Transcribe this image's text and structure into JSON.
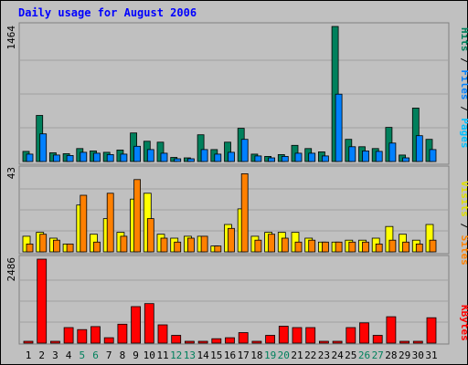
{
  "title": "Daily usage for August 2006",
  "colors": {
    "background": "#c0c0c0",
    "title": "#0000ff",
    "hits": "#00805c",
    "files": "#0080ff",
    "pages": "#00c0ff",
    "visits": "#ffff00",
    "sites": "#ff8000",
    "kbytes": "#ff0000",
    "weekend_label": "#00805c",
    "weekday_label": "#000000"
  },
  "chart_data": [
    {
      "type": "bar",
      "title": "Daily usage for August 2006",
      "ymax_label": "1464",
      "ylim": [
        0,
        1464
      ],
      "legend": [
        "Pages",
        "Files",
        "Hits"
      ],
      "categories": [
        "1",
        "2",
        "3",
        "4",
        "5",
        "6",
        "7",
        "8",
        "9",
        "10",
        "11",
        "12",
        "13",
        "14",
        "15",
        "16",
        "17",
        "18",
        "19",
        "20",
        "21",
        "22",
        "23",
        "24",
        "25",
        "26",
        "27",
        "28",
        "29",
        "30",
        "31"
      ],
      "series": [
        {
          "name": "Hits",
          "values": [
            110,
            500,
            95,
            85,
            140,
            115,
            100,
            125,
            310,
            220,
            210,
            45,
            40,
            290,
            130,
            210,
            360,
            80,
            55,
            75,
            175,
            140,
            105,
            1464,
            240,
            160,
            140,
            370,
            70,
            580,
            240
          ]
        },
        {
          "name": "Files",
          "values": [
            80,
            300,
            70,
            65,
            100,
            90,
            75,
            80,
            165,
            130,
            90,
            30,
            30,
            130,
            80,
            100,
            240,
            60,
            40,
            55,
            90,
            90,
            60,
            730,
            160,
            115,
            110,
            200,
            40,
            280,
            130
          ]
        },
        {
          "name": "Pages",
          "values": [
            0,
            0,
            0,
            0,
            0,
            0,
            0,
            0,
            0,
            0,
            0,
            0,
            0,
            0,
            0,
            0,
            0,
            0,
            0,
            0,
            0,
            0,
            0,
            0,
            0,
            0,
            0,
            0,
            0,
            0,
            0
          ]
        }
      ]
    },
    {
      "type": "bar",
      "ymax_label": "43",
      "ylim": [
        0,
        43
      ],
      "legend": [
        "Sites",
        "Visits"
      ],
      "categories": [
        "1",
        "2",
        "3",
        "4",
        "5",
        "6",
        "7",
        "8",
        "9",
        "10",
        "11",
        "12",
        "13",
        "14",
        "15",
        "16",
        "17",
        "18",
        "19",
        "20",
        "21",
        "22",
        "23",
        "24",
        "25",
        "26",
        "27",
        "28",
        "29",
        "30",
        "31"
      ],
      "series": [
        {
          "name": "Visits",
          "values": [
            8,
            10,
            7,
            4,
            24,
            9,
            17,
            10,
            27,
            30,
            9,
            7,
            8,
            8,
            3,
            14,
            22,
            8,
            10,
            10,
            10,
            7,
            5,
            5,
            6,
            6,
            7,
            13,
            9,
            6,
            14
          ]
        },
        {
          "name": "Sites",
          "values": [
            4,
            9,
            6,
            4,
            29,
            5,
            30,
            8,
            37,
            17,
            7,
            5,
            7,
            8,
            3,
            12,
            40,
            6,
            9,
            7,
            5,
            6,
            5,
            5,
            5,
            5,
            4,
            6,
            5,
            4,
            6
          ]
        }
      ]
    },
    {
      "type": "bar",
      "ymax_label": "2486",
      "ylim": [
        0,
        2486
      ],
      "legend": [
        "KBytes"
      ],
      "categories": [
        "1",
        "2",
        "3",
        "4",
        "5",
        "6",
        "7",
        "8",
        "9",
        "10",
        "11",
        "12",
        "13",
        "14",
        "15",
        "16",
        "17",
        "18",
        "19",
        "20",
        "21",
        "22",
        "23",
        "24",
        "25",
        "26",
        "27",
        "28",
        "29",
        "30",
        "31"
      ],
      "series": [
        {
          "name": "KBytes",
          "values": [
            0,
            2486,
            0,
            460,
            400,
            490,
            160,
            560,
            1080,
            1170,
            540,
            230,
            0,
            0,
            130,
            160,
            310,
            0,
            230,
            500,
            460,
            460,
            0,
            0,
            460,
            600,
            230,
            780,
            0,
            0,
            750
          ]
        }
      ]
    }
  ],
  "x_labels": [
    {
      "text": "1",
      "weekend": false
    },
    {
      "text": "2",
      "weekend": false
    },
    {
      "text": "3",
      "weekend": false
    },
    {
      "text": "4",
      "weekend": false
    },
    {
      "text": "5",
      "weekend": true
    },
    {
      "text": "6",
      "weekend": true
    },
    {
      "text": "7",
      "weekend": false
    },
    {
      "text": "8",
      "weekend": false
    },
    {
      "text": "9",
      "weekend": false
    },
    {
      "text": "10",
      "weekend": false
    },
    {
      "text": "11",
      "weekend": false
    },
    {
      "text": "12",
      "weekend": true
    },
    {
      "text": "13",
      "weekend": true
    },
    {
      "text": "14",
      "weekend": false
    },
    {
      "text": "15",
      "weekend": false
    },
    {
      "text": "16",
      "weekend": false
    },
    {
      "text": "17",
      "weekend": false
    },
    {
      "text": "18",
      "weekend": false
    },
    {
      "text": "19",
      "weekend": true
    },
    {
      "text": "20",
      "weekend": true
    },
    {
      "text": "21",
      "weekend": false
    },
    {
      "text": "22",
      "weekend": false
    },
    {
      "text": "23",
      "weekend": false
    },
    {
      "text": "24",
      "weekend": false
    },
    {
      "text": "25",
      "weekend": false
    },
    {
      "text": "26",
      "weekend": true
    },
    {
      "text": "27",
      "weekend": true
    },
    {
      "text": "28",
      "weekend": false
    },
    {
      "text": "29",
      "weekend": false
    },
    {
      "text": "30",
      "weekend": false
    },
    {
      "text": "31",
      "weekend": false
    }
  ]
}
